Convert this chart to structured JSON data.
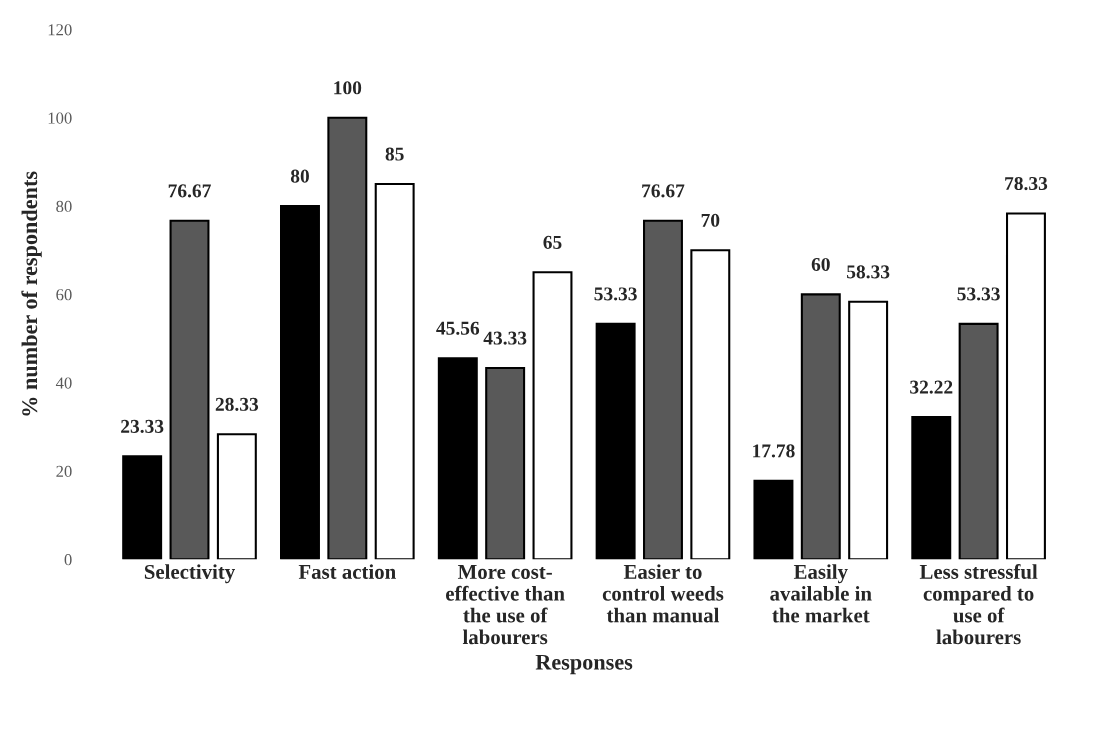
{
  "chart_data": {
    "type": "bar",
    "xlabel": "Responses",
    "ylabel": "% number of respondents",
    "categories": [
      "Selectivity",
      "Fast action",
      "More cost-\neffective than\nthe use of\nlabourers",
      "Easier to\ncontrol weeds\nthan manual",
      "Easily\navailable in\nthe market",
      "Less stressful\ncompared to\nuse of\nlabourers"
    ],
    "series": [
      {
        "color": "#000000",
        "values": [
          23.33,
          80,
          45.56,
          53.33,
          17.78,
          32.22
        ]
      },
      {
        "color": "#595959",
        "values": [
          76.67,
          100,
          43.33,
          76.67,
          60,
          53.33
        ]
      },
      {
        "color": "#ffffff",
        "values": [
          28.33,
          85,
          65,
          70,
          58.33,
          78.33
        ]
      }
    ],
    "ylim": [
      0,
      120
    ],
    "yticks": [
      0,
      20,
      40,
      60,
      80,
      100,
      120
    ],
    "data_labels": true,
    "grid": false,
    "legend": false
  }
}
